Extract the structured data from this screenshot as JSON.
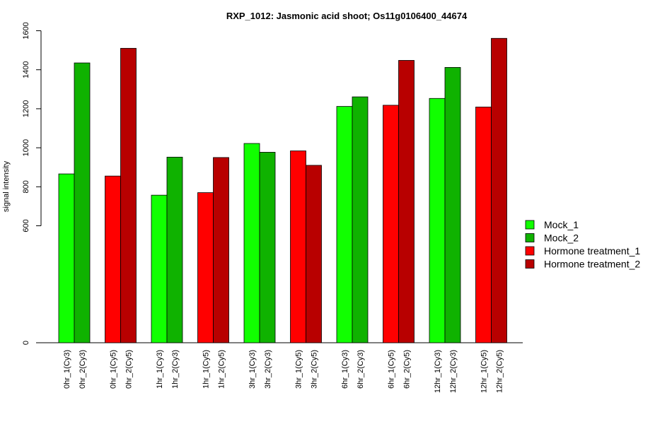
{
  "chart_data": {
    "type": "bar",
    "title": "RXP_1012: Jasmonic acid shoot; Os11g0106400_44674",
    "ylabel": "signal intensity",
    "xlabel": "",
    "y_ticks": [
      0,
      600,
      800,
      1000,
      1200,
      1400,
      1600
    ],
    "y_tick_labels": [
      "0",
      "600",
      "800",
      "1000",
      "1200",
      "1400",
      "1600"
    ],
    "ylim": [
      0,
      1600
    ],
    "categories": [
      "0hr_1(Cy3)",
      "0hr_2(Cy3)",
      "0hr_1(Cy5)",
      "0hr_2(Cy5)",
      "1hr_1(Cy3)",
      "1hr_2(Cy3)",
      "1hr_1(Cy5)",
      "1hr_2(Cy5)",
      "3hr_1(Cy3)",
      "3hr_2(Cy3)",
      "3hr_1(Cy5)",
      "3hr_2(Cy5)",
      "6hr_1(Cy3)",
      "6hr_2(Cy3)",
      "6hr_1(Cy5)",
      "6hr_2(Cy5)",
      "12hr_1(Cy3)",
      "12hr_2(Cy3)",
      "12hr_1(Cy5)",
      "12hr_2(Cy5)"
    ],
    "values": [
      866,
      1435,
      855,
      1510,
      757,
      952,
      770,
      950,
      1022,
      977,
      984,
      910,
      1212,
      1261,
      1218,
      1448,
      1253,
      1412,
      1209,
      1561
    ],
    "series_index": [
      0,
      1,
      2,
      3,
      0,
      1,
      2,
      3,
      0,
      1,
      2,
      3,
      0,
      1,
      2,
      3,
      0,
      1,
      2,
      3
    ],
    "series": [
      {
        "name": "Mock_1",
        "color": "#11ff00"
      },
      {
        "name": "Mock_2",
        "color": "#0fb200"
      },
      {
        "name": "Hormone treatment_1",
        "color": "#ff0000"
      },
      {
        "name": "Hormone treatment_2",
        "color": "#b80000"
      }
    ],
    "legend_position": "right",
    "grid": false
  }
}
